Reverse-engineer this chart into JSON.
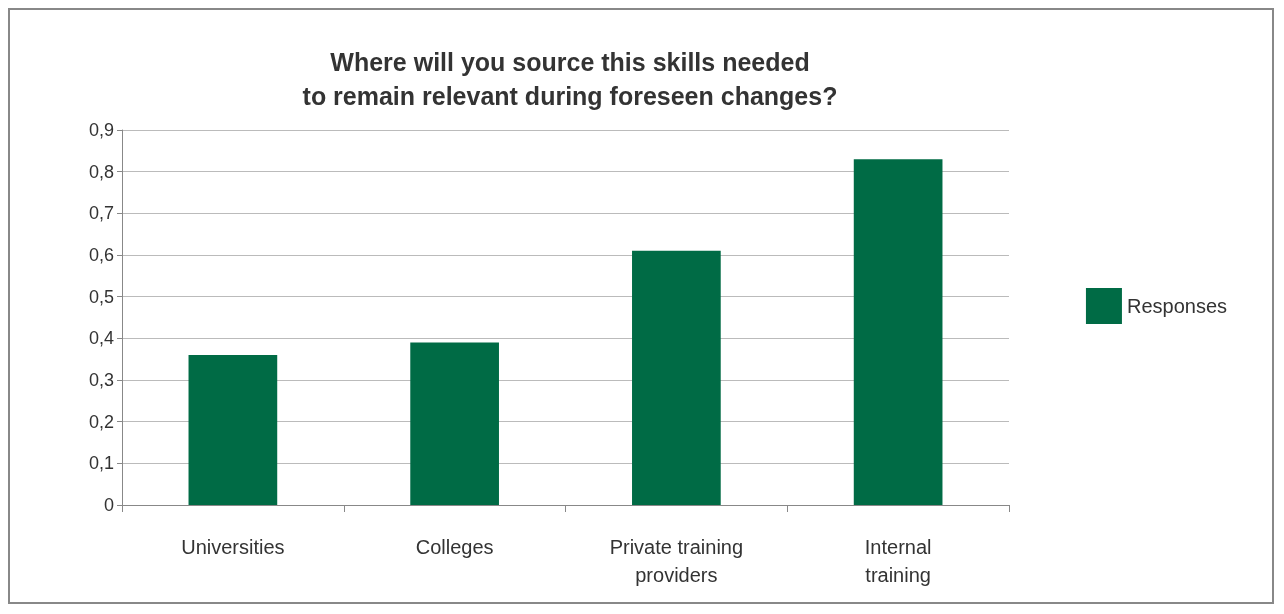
{
  "chart_data": {
    "type": "bar",
    "title": "Where will you source this skills needed\nto remain relevant during foreseen changes?",
    "categories": [
      "Universities",
      "Colleges",
      "Private training\nproviders",
      "Internal\ntraining"
    ],
    "series": [
      {
        "name": "Responses",
        "color": "#006b45",
        "values": [
          0.36,
          0.39,
          0.61,
          0.83
        ]
      }
    ],
    "ylim": [
      0,
      0.9
    ],
    "yticks": [
      0,
      {
        "value": 0.1,
        "label": "0,1"
      },
      {
        "value": 0.2,
        "label": "0,2"
      },
      {
        "value": 0.3,
        "label": "0,3"
      },
      {
        "value": 0.4,
        "label": "0,4"
      },
      {
        "value": 0.5,
        "label": "0,5"
      },
      {
        "value": 0.6,
        "label": "0,6"
      },
      {
        "value": 0.7,
        "label": "0,7"
      },
      {
        "value": 0.8,
        "label": "0,8"
      },
      {
        "value": 0.9,
        "label": "0,9"
      }
    ],
    "grid": "y",
    "legend": "right"
  }
}
